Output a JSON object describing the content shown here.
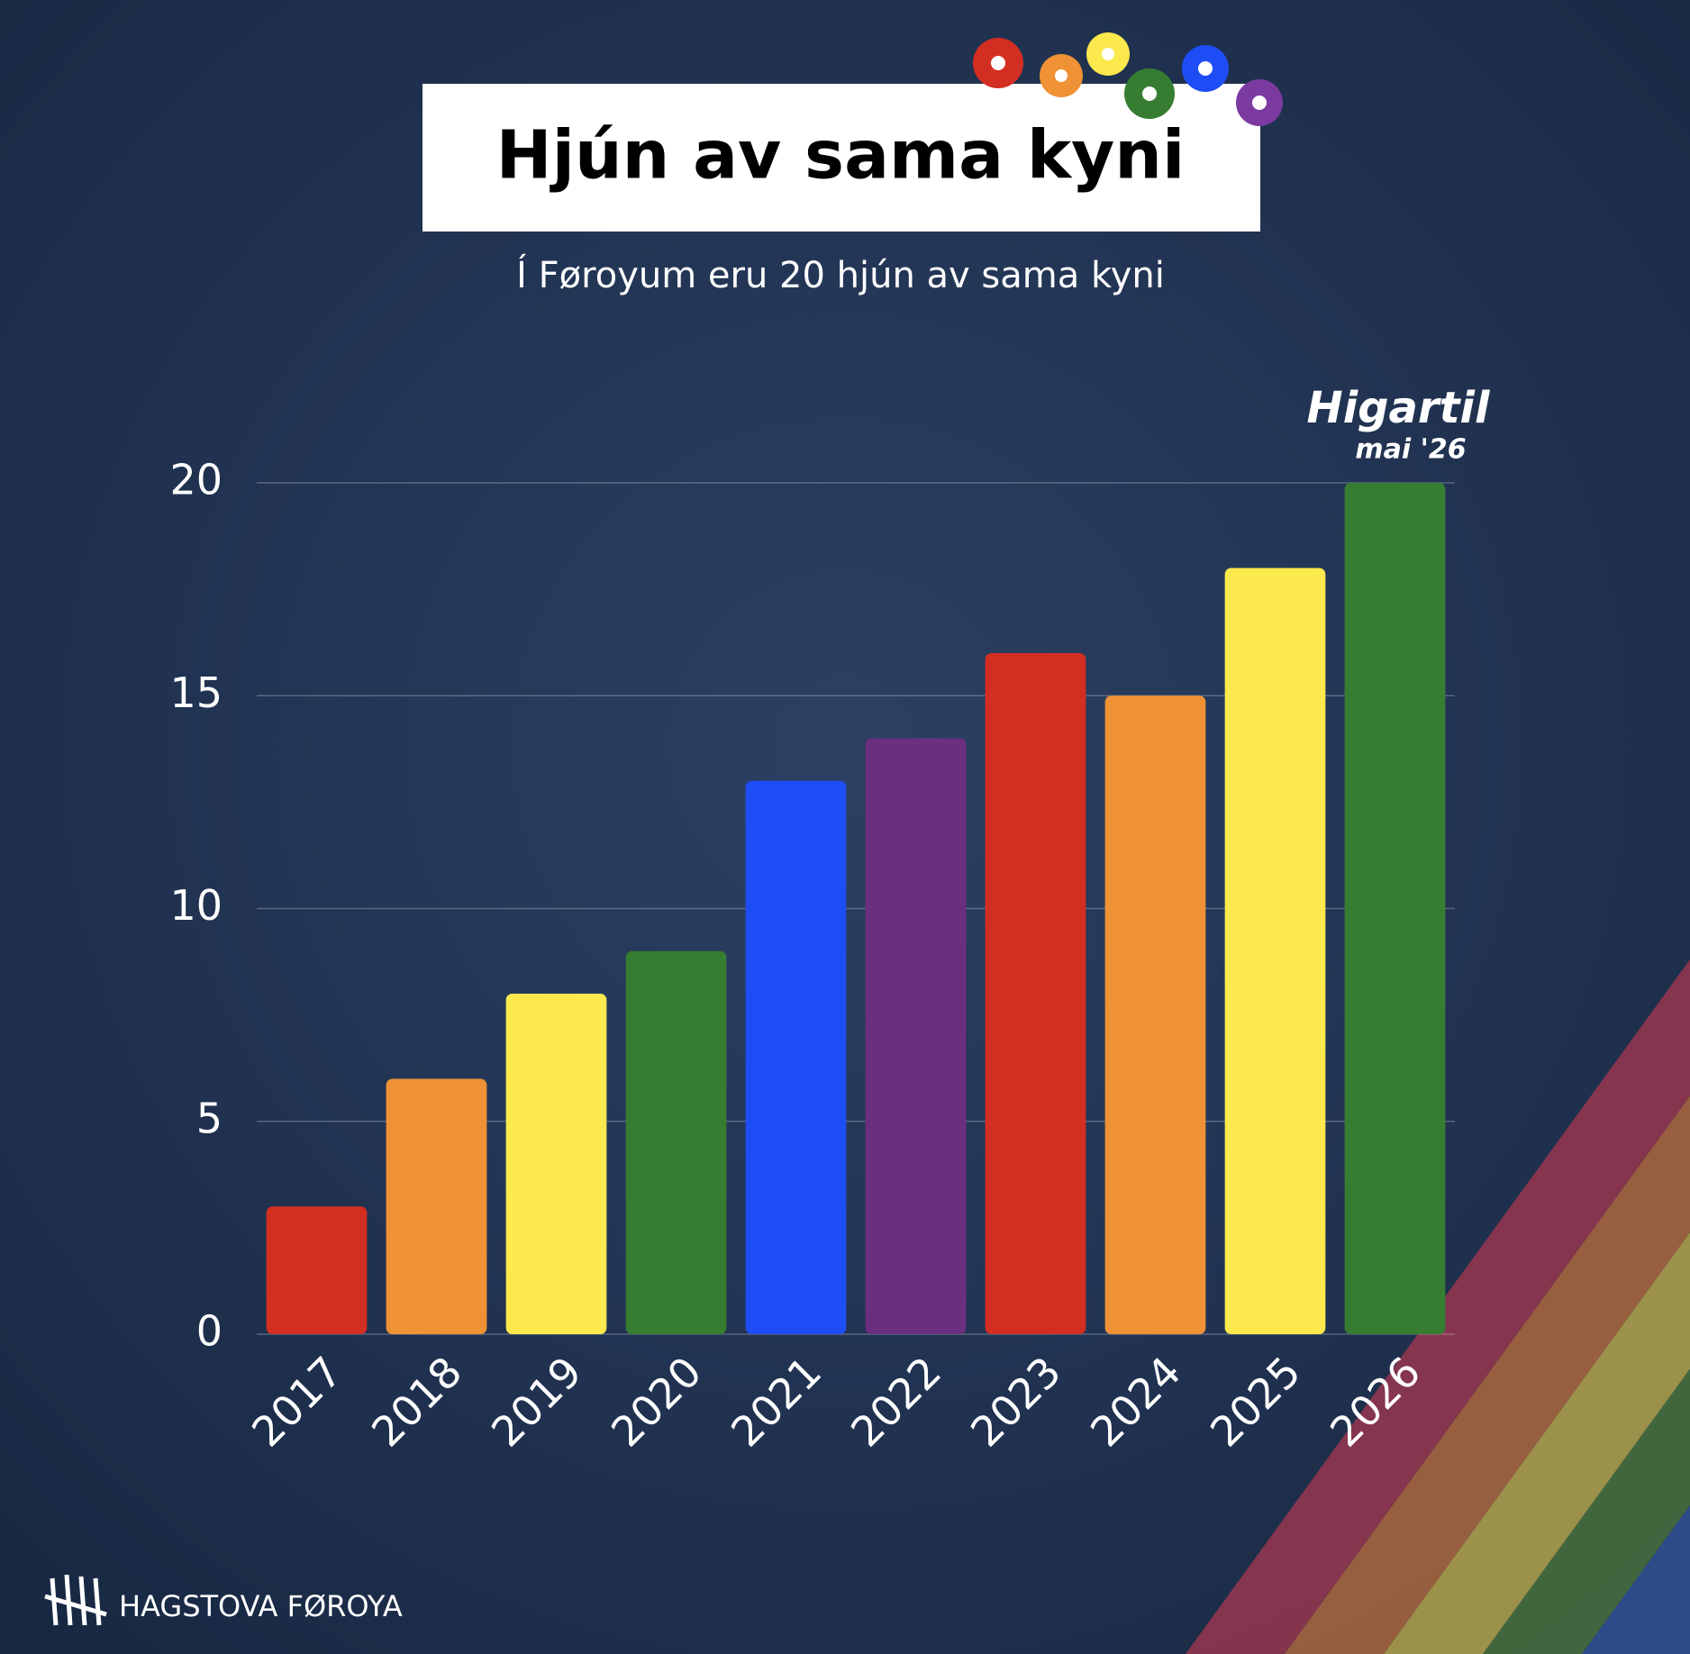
{
  "chart_data": {
    "type": "bar",
    "title": "Hjún av sama kyni",
    "subtitle": "Í Føroyum eru 20 hjún av sama kyni",
    "categories": [
      "2017",
      "2018",
      "2019",
      "2020",
      "2021",
      "2022",
      "2023",
      "2024",
      "2025",
      "2026"
    ],
    "values": [
      3,
      6,
      8,
      9,
      13,
      14,
      16,
      15,
      18,
      20
    ],
    "colors": [
      "#d22f22",
      "#ef9135",
      "#fbe94e",
      "#367d32",
      "#1f4df5",
      "#6b2f80",
      "#d22f22",
      "#ef9135",
      "#fbe94e",
      "#367d32"
    ],
    "ylim": [
      0,
      20
    ],
    "yticks": [
      0,
      5,
      10,
      15,
      20
    ],
    "grid": true,
    "annotations": [
      "Higartil",
      "mai '26"
    ],
    "source": "HAGSTOVA FØROYA"
  }
}
